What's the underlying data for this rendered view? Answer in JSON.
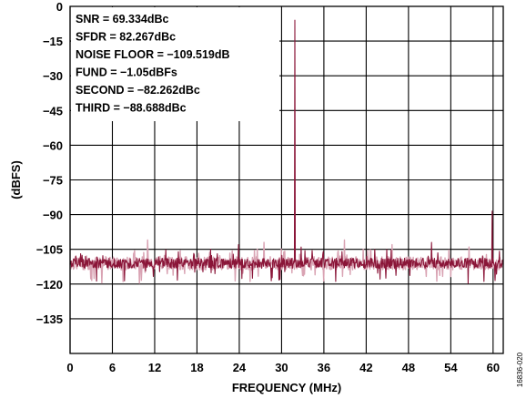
{
  "chart_data": {
    "type": "line",
    "xlabel": "FREQUENCY (MHz)",
    "ylabel": "(dBFS)",
    "xlim": [
      0,
      61.44
    ],
    "ylim": [
      -150,
      0
    ],
    "x_ticks": [
      0,
      6,
      12,
      18,
      24,
      30,
      36,
      42,
      48,
      54,
      60
    ],
    "y_ticks": [
      0,
      -15,
      -30,
      -45,
      -60,
      -75,
      -90,
      -105,
      -120,
      -135
    ],
    "x_tick_labels": [
      "0",
      "6",
      "12",
      "18",
      "24",
      "30",
      "36",
      "42",
      "48",
      "54",
      "60"
    ],
    "y_tick_labels": [
      "0",
      "−15",
      "−30",
      "−45",
      "−60",
      "−75",
      "−90",
      "−105",
      "−120",
      "−135"
    ],
    "grid": true,
    "noise_floor_level": -111,
    "noise_floor_jitter": 2.2,
    "series": [
      {
        "color": "#8a1538",
        "spurs": [
          {
            "x": 31.9,
            "y": -6
          },
          {
            "x": 59.9,
            "y": -88.5
          },
          {
            "x": 23.9,
            "y": -103
          },
          {
            "x": 51.3,
            "y": -102
          },
          {
            "x": 32.8,
            "y": -104
          },
          {
            "x": 35.9,
            "y": -106
          }
        ]
      },
      {
        "color": "#d9a3b3",
        "spurs": [
          {
            "x": 11.0,
            "y": -101
          },
          {
            "x": 27.5,
            "y": -102
          },
          {
            "x": 38.9,
            "y": -101
          },
          {
            "x": 45.7,
            "y": -103
          },
          {
            "x": 56.6,
            "y": -104
          }
        ]
      }
    ],
    "annotations": [
      "SNR = 69.334dBc",
      "SFDR = 82.267dBc",
      "NOISE FLOOR = −109.519dB",
      "FUND = −1.05dBFs",
      "SECOND = −82.262dBc",
      "THIRD = −88.688dBc"
    ]
  },
  "figure_id": "16836-020"
}
